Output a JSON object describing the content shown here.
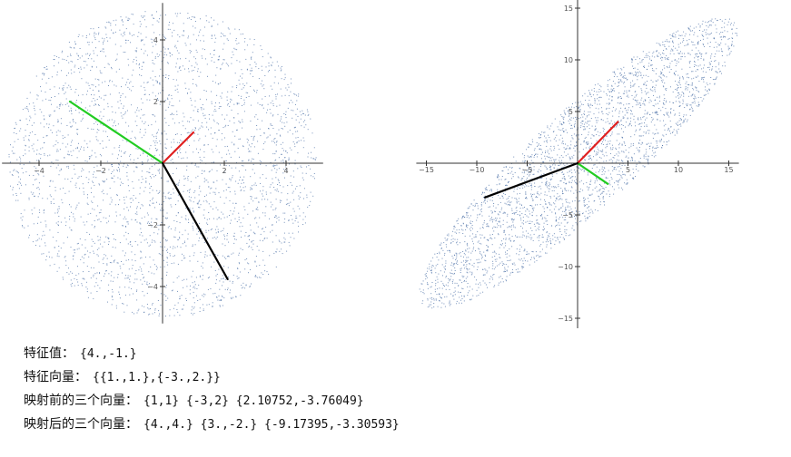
{
  "colors": {
    "points": "#4a6fa5",
    "eigvec1": "#e02020",
    "eigvec2": "#22cc22",
    "vector3": "#000000",
    "axis": "#333333"
  },
  "chart_data": [
    {
      "type": "scatter",
      "title": "",
      "xlabel": "",
      "ylabel": "",
      "xlim": [
        -5.2,
        5.2
      ],
      "ylim": [
        -5.2,
        5.2
      ],
      "xticks": [
        -4,
        -2,
        2,
        4
      ],
      "yticks": [
        -4,
        -2,
        2,
        4
      ],
      "series": [
        {
          "name": "points",
          "description_kind": "uniform disk radius 5",
          "count": 3000
        },
        {
          "name": "vector-red",
          "from": [
            0,
            0
          ],
          "to": [
            1,
            1
          ]
        },
        {
          "name": "vector-green",
          "from": [
            0,
            0
          ],
          "to": [
            -3,
            2
          ]
        },
        {
          "name": "vector-black",
          "from": [
            0,
            0
          ],
          "to": [
            2.10752,
            -3.76049
          ]
        }
      ]
    },
    {
      "type": "scatter",
      "title": "",
      "xlabel": "",
      "ylabel": "",
      "xlim": [
        -16,
        16
      ],
      "ylim": [
        -16,
        16
      ],
      "xticks": [
        -15,
        -10,
        -5,
        5,
        10,
        15
      ],
      "yticks": [
        -15,
        -10,
        -5,
        5,
        10,
        15
      ],
      "series": [
        {
          "name": "points",
          "description_kind": "transformed disk",
          "count": 3000
        },
        {
          "name": "vector-red",
          "from": [
            0,
            0
          ],
          "to": [
            4,
            4
          ]
        },
        {
          "name": "vector-green",
          "from": [
            0,
            0
          ],
          "to": [
            3,
            -2
          ]
        },
        {
          "name": "vector-black",
          "from": [
            0,
            0
          ],
          "to": [
            -9.17395,
            -3.30593
          ]
        }
      ]
    }
  ],
  "output": {
    "eigenvalues_label": "特征值：",
    "eigenvalues_value": "{4.,-1.}",
    "eigenvectors_label": "特征向量：",
    "eigenvectors_value": "{{1.,1.},{-3.,2.}}",
    "before_label": "映射前的三个向量：",
    "before_value": "{1,1} {-3,2} {2.10752,-3.76049}",
    "after_label": "映射后的三个向量：",
    "after_value": "{4.,4.} {3.,-2.} {-9.17395,-3.30593}"
  }
}
